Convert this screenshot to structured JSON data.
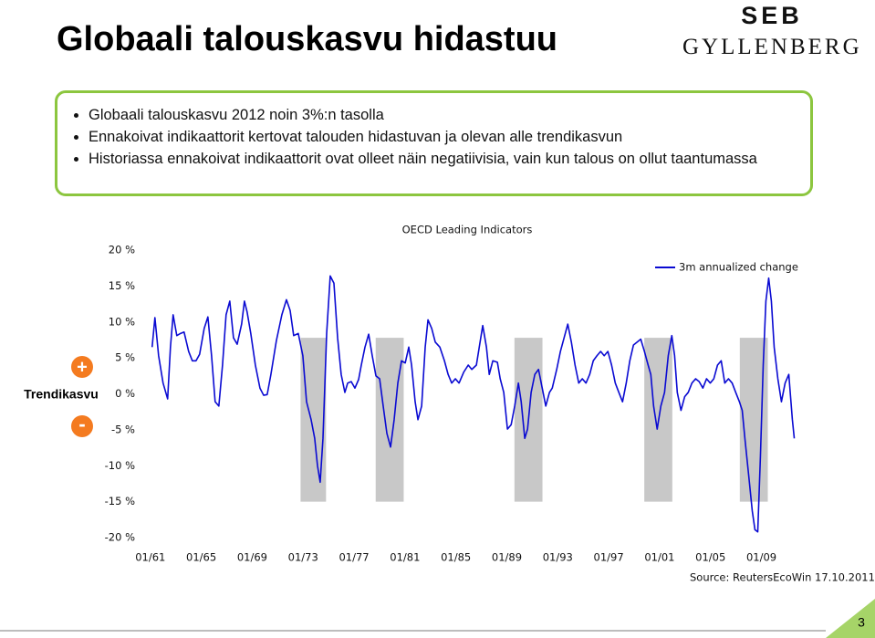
{
  "title": "Globaali talouskasvu hidastuu",
  "logo": {
    "top": "SEB",
    "bottom": "GYLLENBERG"
  },
  "bullets": [
    "Globaali talouskasvu 2012 noin 3%:n tasolla",
    "Ennakoivat indikaattorit kertovat talouden hidastuvan ja olevan alle trendikasvun",
    "Historiassa ennakoivat indikaattorit ovat olleet näin negatiivisia, vain kun talous on ollut taantumassa"
  ],
  "side_labels": {
    "plus": "+",
    "axis": "Trendikasvu",
    "minus": "-"
  },
  "page_number": "3",
  "chart_data": {
    "type": "line",
    "title": "OECD Leading Indicators",
    "source": "Source: ReutersEcoWin 17.10.2011",
    "legend_position": "upper right",
    "xlim": [
      1960.3,
      2011.9
    ],
    "ylim": [
      -20,
      20
    ],
    "yticks": [
      {
        "value": 20,
        "label": "20 %"
      },
      {
        "value": 15,
        "label": "15 %"
      },
      {
        "value": 10,
        "label": "10 %"
      },
      {
        "value": 5,
        "label": "5 %"
      },
      {
        "value": 0,
        "label": "0 %"
      },
      {
        "value": -5,
        "label": "-5 %"
      },
      {
        "value": -10,
        "label": "-10 %"
      },
      {
        "value": -15,
        "label": "-15 %"
      },
      {
        "value": -20,
        "label": "-20 %"
      }
    ],
    "xticks": [
      {
        "value": 1961,
        "label": "01/61"
      },
      {
        "value": 1965,
        "label": "01/65"
      },
      {
        "value": 1969,
        "label": "01/69"
      },
      {
        "value": 1973,
        "label": "01/73"
      },
      {
        "value": 1977,
        "label": "01/77"
      },
      {
        "value": 1981,
        "label": "01/81"
      },
      {
        "value": 1985,
        "label": "01/85"
      },
      {
        "value": 1989,
        "label": "01/89"
      },
      {
        "value": 1993,
        "label": "01/93"
      },
      {
        "value": 1997,
        "label": "01/97"
      },
      {
        "value": 2001,
        "label": "01/01"
      },
      {
        "value": 2005,
        "label": "01/05"
      },
      {
        "value": 2009,
        "label": "01/09"
      }
    ],
    "shaded_periods": [
      [
        1972.8,
        1974.8
      ],
      [
        1978.7,
        1980.9
      ],
      [
        1989.6,
        1991.8
      ],
      [
        1999.8,
        2002.0
      ],
      [
        2007.3,
        2009.5
      ]
    ],
    "shade_color": "#c8c8c8",
    "shade_ylim": [
      -15,
      7.8
    ],
    "x": [
      1961.14,
      1961.36,
      1961.65,
      1962.0,
      1962.36,
      1962.58,
      1962.79,
      1963.08,
      1963.37,
      1963.65,
      1964.01,
      1964.3,
      1964.59,
      1964.87,
      1965.23,
      1965.52,
      1965.81,
      1966.09,
      1966.38,
      1966.67,
      1966.95,
      1967.24,
      1967.53,
      1967.82,
      1968.17,
      1968.39,
      1968.6,
      1968.89,
      1969.25,
      1969.61,
      1969.9,
      1970.18,
      1970.47,
      1970.9,
      1971.33,
      1971.69,
      1971.98,
      1972.26,
      1972.62,
      1972.98,
      1973.27,
      1973.63,
      1973.91,
      1974.13,
      1974.34,
      1974.56,
      1974.85,
      1975.13,
      1975.42,
      1975.71,
      1975.99,
      1976.28,
      1976.5,
      1976.78,
      1977.07,
      1977.36,
      1977.57,
      1977.86,
      1978.15,
      1978.43,
      1978.72,
      1979.01,
      1979.29,
      1979.58,
      1979.87,
      1980.15,
      1980.44,
      1980.73,
      1981.02,
      1981.3,
      1981.52,
      1981.8,
      1982.02,
      1982.31,
      1982.59,
      1982.81,
      1983.1,
      1983.38,
      1983.74,
      1984.1,
      1984.39,
      1984.67,
      1984.96,
      1985.25,
      1985.61,
      1985.97,
      1986.25,
      1986.61,
      1986.9,
      1987.11,
      1987.4,
      1987.62,
      1987.9,
      1988.26,
      1988.48,
      1988.76,
      1989.05,
      1989.34,
      1989.62,
      1989.91,
      1990.13,
      1990.41,
      1990.63,
      1990.91,
      1991.2,
      1991.49,
      1991.78,
      1992.06,
      1992.35,
      1992.57,
      1992.92,
      1993.21,
      1993.5,
      1993.79,
      1994.07,
      1994.36,
      1994.65,
      1994.93,
      1995.22,
      1995.51,
      1995.79,
      1996.08,
      1996.37,
      1996.65,
      1996.94,
      1997.23,
      1997.52,
      1997.8,
      1998.09,
      1998.38,
      1998.66,
      1998.95,
      1999.24,
      1999.52,
      1999.81,
      2000.1,
      2000.31,
      2000.53,
      2000.81,
      2001.1,
      2001.39,
      2001.68,
      2001.96,
      2002.18,
      2002.39,
      2002.68,
      2002.97,
      2003.25,
      2003.54,
      2003.83,
      2004.11,
      2004.4,
      2004.69,
      2004.98,
      2005.26,
      2005.55,
      2005.84,
      2006.12,
      2006.41,
      2006.7,
      2006.98,
      2007.27,
      2007.49,
      2007.7,
      2007.99,
      2008.28,
      2008.49,
      2008.71,
      2008.92,
      2009.14,
      2009.35,
      2009.57,
      2009.78,
      2010.0,
      2010.29,
      2010.57,
      2010.86,
      2011.15,
      2011.43,
      2011.58
    ],
    "series": [
      {
        "name": "3m annualized change",
        "color": "#0a0ad2",
        "values": [
          6.5,
          10.6,
          5.3,
          1.5,
          -0.7,
          6.5,
          11.0,
          8.1,
          8.4,
          8.6,
          5.9,
          4.6,
          4.6,
          5.5,
          9.1,
          10.7,
          5.3,
          -1.1,
          -1.7,
          4.0,
          11.0,
          12.9,
          7.8,
          6.9,
          9.7,
          12.9,
          11.4,
          8.4,
          4.0,
          0.8,
          -0.2,
          -0.1,
          2.7,
          7.4,
          11.0,
          13.1,
          11.6,
          8.1,
          8.4,
          5.3,
          -1.1,
          -3.6,
          -6.2,
          -10.0,
          -12.3,
          -6.2,
          8.4,
          16.4,
          15.4,
          7.8,
          2.7,
          0.2,
          1.5,
          1.7,
          0.8,
          2.0,
          4.0,
          6.5,
          8.3,
          5.3,
          2.5,
          2.1,
          -1.7,
          -5.5,
          -7.4,
          -3.6,
          1.5,
          4.6,
          4.3,
          6.5,
          4.0,
          -1.1,
          -3.6,
          -1.7,
          6.5,
          10.3,
          9.1,
          7.2,
          6.5,
          4.6,
          2.7,
          1.5,
          2.1,
          1.5,
          3.0,
          4.0,
          3.4,
          4.0,
          7.2,
          9.5,
          6.5,
          2.7,
          4.6,
          4.4,
          2.1,
          0.2,
          -4.9,
          -4.3,
          -1.7,
          1.5,
          -1.1,
          -6.2,
          -4.9,
          0.2,
          2.7,
          3.4,
          0.8,
          -1.7,
          0.2,
          0.8,
          3.4,
          5.9,
          7.8,
          9.7,
          7.2,
          4.0,
          1.5,
          2.1,
          1.5,
          2.7,
          4.6,
          5.3,
          5.9,
          5.3,
          5.9,
          4.0,
          1.5,
          0.2,
          -1.1,
          1.5,
          4.6,
          6.8,
          7.2,
          7.6,
          5.9,
          4.0,
          2.7,
          -1.7,
          -4.9,
          -1.7,
          0.2,
          5.3,
          8.1,
          5.3,
          0.2,
          -2.3,
          -0.4,
          0.2,
          1.5,
          2.1,
          1.7,
          0.8,
          2.1,
          1.5,
          2.1,
          4.0,
          4.6,
          1.5,
          2.1,
          1.5,
          0.2,
          -1.1,
          -2.3,
          -6.2,
          -11.2,
          -16.3,
          -18.9,
          -19.2,
          -8.7,
          4.0,
          12.9,
          16.1,
          12.9,
          6.5,
          2.1,
          -1.1,
          1.5,
          2.7,
          -3.6,
          -6.2
        ]
      }
    ]
  }
}
